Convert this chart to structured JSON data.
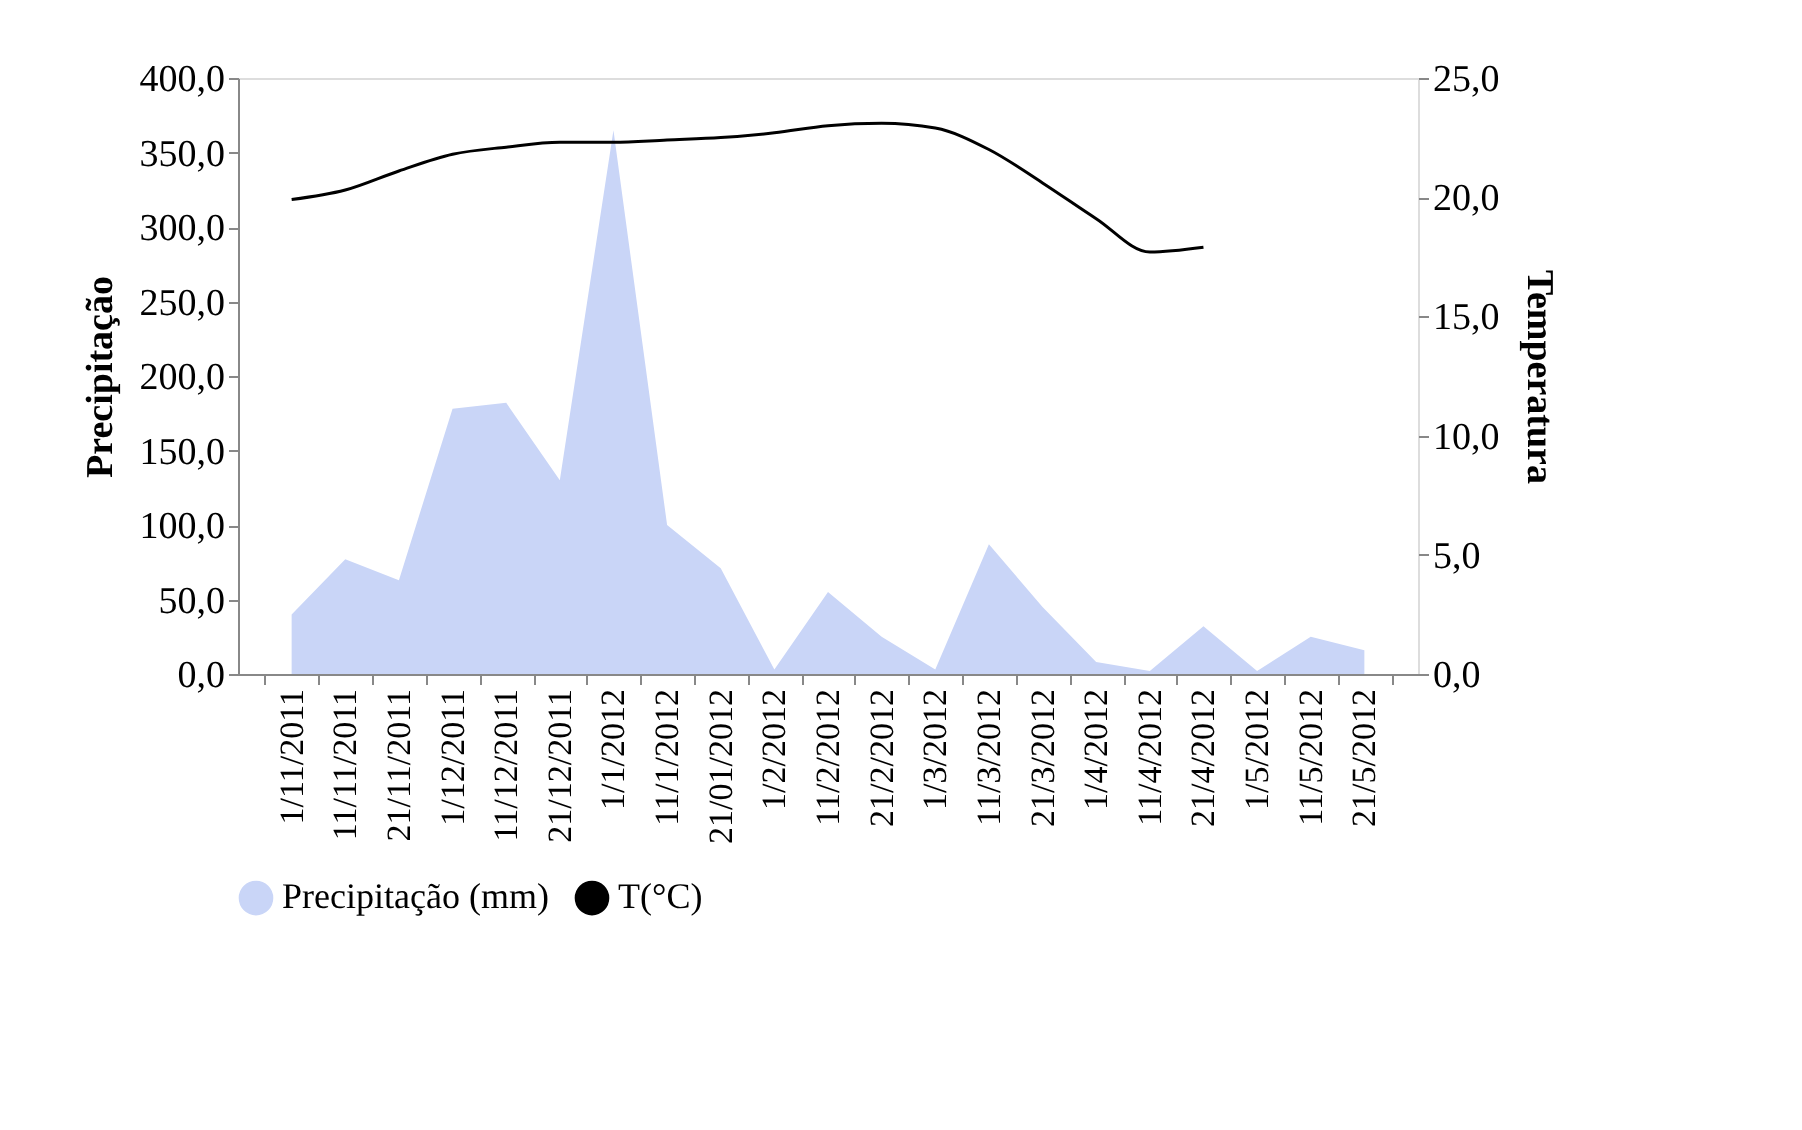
{
  "chart_data": {
    "type": "area",
    "categories": [
      "1/11/2011",
      "11/11/2011",
      "21/11/2011",
      "1/12/2011",
      "11/12/2011",
      "21/12/2011",
      "1/1/2012",
      "11/1/2012",
      "21/01/2012",
      "1/2/2012",
      "11/2/2012",
      "21/2/2012",
      "1/3/2012",
      "11/3/2012",
      "21/3/2012",
      "1/4/2012",
      "11/4/2012",
      "21/4/2012",
      "1/5/2012",
      "11/5/2012",
      "21/5/2012"
    ],
    "series": [
      {
        "name": "Precipitação (mm)",
        "color": "#c9d5f7",
        "values": [
          40,
          77,
          63,
          178,
          182,
          130,
          365,
          100,
          71,
          3,
          55,
          25,
          3,
          87,
          45,
          8,
          2,
          32,
          2,
          25,
          16
        ]
      },
      {
        "name": "T(°C)",
        "type": "line",
        "axis": "y2",
        "color": "#000000",
        "values": [
          19.9,
          20.3,
          21.1,
          21.8,
          22.1,
          22.3,
          22.3,
          22.4,
          22.5,
          22.7,
          23.0,
          23.1,
          22.9,
          22.0,
          20.6,
          19.1,
          17.7,
          17.9,
          null,
          null,
          null
        ]
      }
    ],
    "ylabel": "Precipitação",
    "y2label": "Temperatura",
    "ylim": [
      0,
      400
    ],
    "yticks": [
      {
        "value": 0,
        "label": "0,0"
      },
      {
        "value": 50,
        "label": "50,0"
      },
      {
        "value": 100,
        "label": "100,0"
      },
      {
        "value": 150,
        "label": "150,0"
      },
      {
        "value": 200,
        "label": "200,0"
      },
      {
        "value": 250,
        "label": "250,0"
      },
      {
        "value": 300,
        "label": "300,0"
      },
      {
        "value": 350,
        "label": "350,0"
      },
      {
        "value": 400,
        "label": "400,0"
      }
    ],
    "y2lim": [
      0,
      25
    ],
    "y2ticks": [
      {
        "value": 0,
        "label": "0,0"
      },
      {
        "value": 5,
        "label": "5,0"
      },
      {
        "value": 10,
        "label": "10,0"
      },
      {
        "value": 15,
        "label": "15,0"
      },
      {
        "value": 20,
        "label": "20,0"
      },
      {
        "value": 25,
        "label": "25,0"
      }
    ],
    "grid": false,
    "legend": "bottom"
  }
}
